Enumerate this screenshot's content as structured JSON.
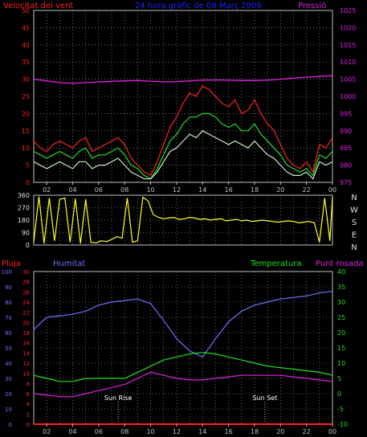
{
  "colors": {
    "red": "#ff2020",
    "blue": "#2020ff",
    "magenta": "#e020e0",
    "green": "#20e020",
    "yellow": "#ffff20",
    "gray": "#d0d0d0",
    "lightgreen": "#c8f0c8",
    "humid": "#7070ff"
  },
  "chart_data": [
    {
      "type": "line",
      "title": "24 hora gràfic de  08 Març 2009",
      "left_label": "Velocitat del vent",
      "right_label": "Pressió",
      "x_ticks": [
        "02",
        "04",
        "06",
        "08",
        "10",
        "12",
        "14",
        "16",
        "18",
        "20",
        "22",
        "00"
      ],
      "x_range": [
        1,
        24
      ],
      "ylim_left": [
        0,
        50
      ],
      "y_ticks_left": [
        0,
        5,
        10,
        15,
        20,
        25,
        30,
        35,
        40,
        45,
        50
      ],
      "ylim_right": [
        975,
        1025
      ],
      "y_ticks_right": [
        975,
        980,
        985,
        990,
        995,
        1000,
        1005,
        1010,
        1015,
        1020,
        1025
      ],
      "series": [
        {
          "name": "",
          "color_key": "red",
          "x": [
            1.0,
            1.5,
            2.0,
            2.5,
            3.0,
            3.5,
            4.0,
            4.5,
            5.0,
            5.5,
            6.0,
            6.5,
            7.0,
            7.5,
            8.0,
            8.5,
            9.0,
            9.5,
            10.0,
            10.5,
            11.0,
            11.5,
            12.0,
            12.5,
            13.0,
            13.5,
            14.0,
            14.5,
            15.0,
            15.5,
            16.0,
            16.5,
            17.0,
            17.5,
            18.0,
            18.5,
            19.0,
            19.5,
            20.0,
            20.5,
            21.0,
            21.5,
            22.0,
            22.5,
            23.0,
            23.5,
            24.0
          ],
          "y": [
            12,
            10,
            9,
            11,
            12,
            11,
            10,
            12,
            13,
            9,
            10,
            11,
            12,
            13,
            11,
            7,
            5,
            3,
            2,
            6,
            11,
            16,
            19,
            23,
            26,
            25,
            28,
            27,
            25,
            23,
            22,
            24,
            20,
            21,
            24,
            20,
            17,
            15,
            11,
            7,
            5,
            4,
            6,
            3,
            11,
            10,
            13
          ]
        },
        {
          "name": "",
          "color_key": "green",
          "x": [
            1.0,
            1.5,
            2.0,
            2.5,
            3.0,
            3.5,
            4.0,
            4.5,
            5.0,
            5.5,
            6.0,
            6.5,
            7.0,
            7.5,
            8.0,
            8.5,
            9.0,
            9.5,
            10.0,
            10.5,
            11.0,
            11.5,
            12.0,
            12.5,
            13.0,
            13.5,
            14.0,
            14.5,
            15.0,
            15.5,
            16.0,
            16.5,
            17.0,
            17.5,
            18.0,
            18.5,
            19.0,
            19.5,
            20.0,
            20.5,
            21.0,
            21.5,
            22.0,
            22.5,
            23.0,
            23.5,
            24.0
          ],
          "y": [
            9,
            8,
            7,
            8,
            9,
            8,
            7,
            9,
            10,
            7,
            8,
            8,
            9,
            10,
            8,
            5,
            4,
            2,
            1,
            4,
            8,
            12,
            14,
            17,
            19,
            19,
            20,
            20,
            19,
            17,
            16,
            17,
            15,
            15,
            17,
            14,
            12,
            10,
            8,
            5,
            4,
            3,
            4,
            2,
            8,
            7,
            9
          ]
        },
        {
          "name": "",
          "color_key": "lightgreen",
          "x": [
            1.0,
            1.5,
            2.0,
            2.5,
            3.0,
            3.5,
            4.0,
            4.5,
            5.0,
            5.5,
            6.0,
            6.5,
            7.0,
            7.5,
            8.0,
            8.5,
            9.0,
            9.5,
            10.0,
            10.5,
            11.0,
            11.5,
            12.0,
            12.5,
            13.0,
            13.5,
            14.0,
            14.5,
            15.0,
            15.5,
            16.0,
            16.5,
            17.0,
            17.5,
            18.0,
            18.5,
            19.0,
            19.5,
            20.0,
            20.5,
            21.0,
            21.5,
            22.0,
            22.5,
            23.0,
            23.5,
            24.0
          ],
          "y": [
            6,
            5,
            4,
            5,
            6,
            5,
            4,
            6,
            6,
            4,
            5,
            5,
            6,
            7,
            5,
            3,
            2,
            1,
            1,
            3,
            6,
            9,
            10,
            12,
            14,
            13,
            15,
            14,
            13,
            12,
            11,
            12,
            11,
            10,
            12,
            10,
            8,
            7,
            5,
            3,
            2,
            2,
            3,
            1,
            6,
            5,
            6
          ]
        },
        {
          "name": "",
          "color_key": "magenta",
          "axis": "right",
          "x": [
            1,
            2,
            3,
            4,
            5,
            6,
            7,
            8,
            9,
            10,
            11,
            12,
            13,
            14,
            15,
            16,
            17,
            18,
            19,
            20,
            21,
            22,
            23,
            24
          ],
          "y": [
            1005,
            1004.5,
            1004,
            1003.8,
            1004,
            1004.2,
            1004.4,
            1004.5,
            1004.6,
            1004.4,
            1004.2,
            1004.3,
            1004.5,
            1004.7,
            1004.8,
            1004.7,
            1004.6,
            1004.6,
            1004.7,
            1005.0,
            1005.3,
            1005.6,
            1005.8,
            1006.0
          ]
        }
      ]
    },
    {
      "type": "line",
      "x_ticks": [
        "02",
        "04",
        "06",
        "08",
        "10",
        "12",
        "14",
        "16",
        "18",
        "20",
        "22",
        "00"
      ],
      "x_range": [
        1,
        24
      ],
      "ylim": [
        0,
        360
      ],
      "y_ticks": [
        0,
        90,
        180,
        270,
        360
      ],
      "right_labels": [
        "N",
        "W",
        "S",
        "E",
        "N"
      ],
      "series": [
        {
          "name": "",
          "color_key": "yellow",
          "x": [
            1.0,
            1.4,
            1.8,
            2.2,
            2.6,
            3.0,
            3.4,
            3.8,
            4.2,
            4.6,
            5.0,
            5.4,
            5.8,
            6.2,
            6.6,
            7.0,
            7.4,
            7.8,
            8.2,
            8.6,
            9.0,
            9.4,
            9.8,
            10.2,
            10.6,
            11.0,
            11.4,
            11.8,
            12.2,
            12.6,
            13.0,
            13.4,
            13.8,
            14.2,
            14.6,
            15.0,
            15.4,
            15.8,
            16.2,
            16.6,
            17.0,
            17.4,
            17.8,
            18.2,
            18.6,
            19.0,
            19.4,
            19.8,
            20.2,
            20.6,
            21.0,
            21.4,
            21.8,
            22.2,
            22.6,
            23.0,
            23.4,
            23.8,
            24.0
          ],
          "y": [
            20,
            350,
            10,
            340,
            30,
            330,
            340,
            20,
            335,
            10,
            330,
            20,
            15,
            30,
            25,
            40,
            60,
            50,
            340,
            20,
            30,
            345,
            320,
            220,
            200,
            190,
            195,
            200,
            185,
            190,
            200,
            195,
            185,
            190,
            180,
            185,
            190,
            175,
            180,
            185,
            175,
            180,
            170,
            175,
            180,
            175,
            170,
            165,
            170,
            175,
            170,
            160,
            165,
            170,
            160,
            20,
            340,
            30,
            350
          ]
        }
      ]
    },
    {
      "type": "line",
      "x_ticks": [
        "02",
        "04",
        "06",
        "08",
        "10",
        "12",
        "14",
        "16",
        "18",
        "20",
        "22",
        "00"
      ],
      "x_range": [
        1,
        24
      ],
      "labels": {
        "rain": "Pluja",
        "humidity": "Humitat",
        "temperature": "Temperatura",
        "dewpoint": "Punt rosada"
      },
      "ylim_humidity": [
        0,
        100
      ],
      "y_ticks_humidity": [
        0,
        10,
        20,
        30,
        40,
        50,
        60,
        70,
        80,
        90,
        100
      ],
      "ylim_rain": [
        0,
        30
      ],
      "y_ticks_rain": [
        0,
        2,
        4,
        6,
        8,
        10,
        12,
        14,
        16,
        18,
        20,
        22,
        24,
        26,
        28,
        30
      ],
      "ylim_temp": [
        -10,
        40
      ],
      "y_ticks_temp": [
        -10,
        -5,
        0,
        5,
        10,
        15,
        20,
        25,
        30,
        35,
        40
      ],
      "annotations": [
        {
          "text": "Sun Rise",
          "x": 7.5
        },
        {
          "text": "Sun Set",
          "x": 18.8
        }
      ],
      "series": [
        {
          "name": "Humitat",
          "color_key": "humid",
          "axis": "humidity",
          "x": [
            1,
            2,
            3,
            4,
            5,
            6,
            7,
            8,
            9,
            10,
            11,
            12,
            13,
            14,
            15,
            16,
            17,
            18,
            19,
            20,
            21,
            22,
            23,
            24
          ],
          "y": [
            62,
            70,
            71,
            72,
            74,
            78,
            80,
            81,
            82,
            79,
            68,
            56,
            48,
            44,
            56,
            67,
            74,
            78,
            80,
            82,
            83,
            84,
            86,
            87
          ]
        },
        {
          "name": "Temperatura",
          "color_key": "green",
          "axis": "temp",
          "x": [
            1,
            2,
            3,
            4,
            5,
            6,
            7,
            8,
            9,
            10,
            11,
            12,
            13,
            14,
            15,
            16,
            17,
            18,
            19,
            20,
            21,
            22,
            23,
            24
          ],
          "y": [
            6,
            5,
            4,
            4,
            5,
            5,
            5,
            5,
            7,
            9,
            11,
            12,
            13,
            13.5,
            13,
            12,
            11,
            10,
            9,
            8.5,
            8,
            7.5,
            7,
            6
          ]
        },
        {
          "name": "Punt rosada",
          "color_key": "magenta",
          "axis": "temp",
          "x": [
            1,
            2,
            3,
            4,
            5,
            6,
            7,
            8,
            9,
            10,
            11,
            12,
            13,
            14,
            15,
            16,
            17,
            18,
            19,
            20,
            21,
            22,
            23,
            24
          ],
          "y": [
            0,
            -0.5,
            -1,
            -1,
            0,
            1,
            2,
            3,
            5,
            7,
            6,
            5,
            4.5,
            4.5,
            5,
            5.5,
            6,
            6,
            6,
            6,
            5.5,
            5,
            4.5,
            4
          ]
        },
        {
          "name": "Pluja",
          "color_key": "red",
          "axis": "rain",
          "x": [
            1,
            24
          ],
          "y": [
            0,
            0
          ]
        }
      ]
    }
  ]
}
